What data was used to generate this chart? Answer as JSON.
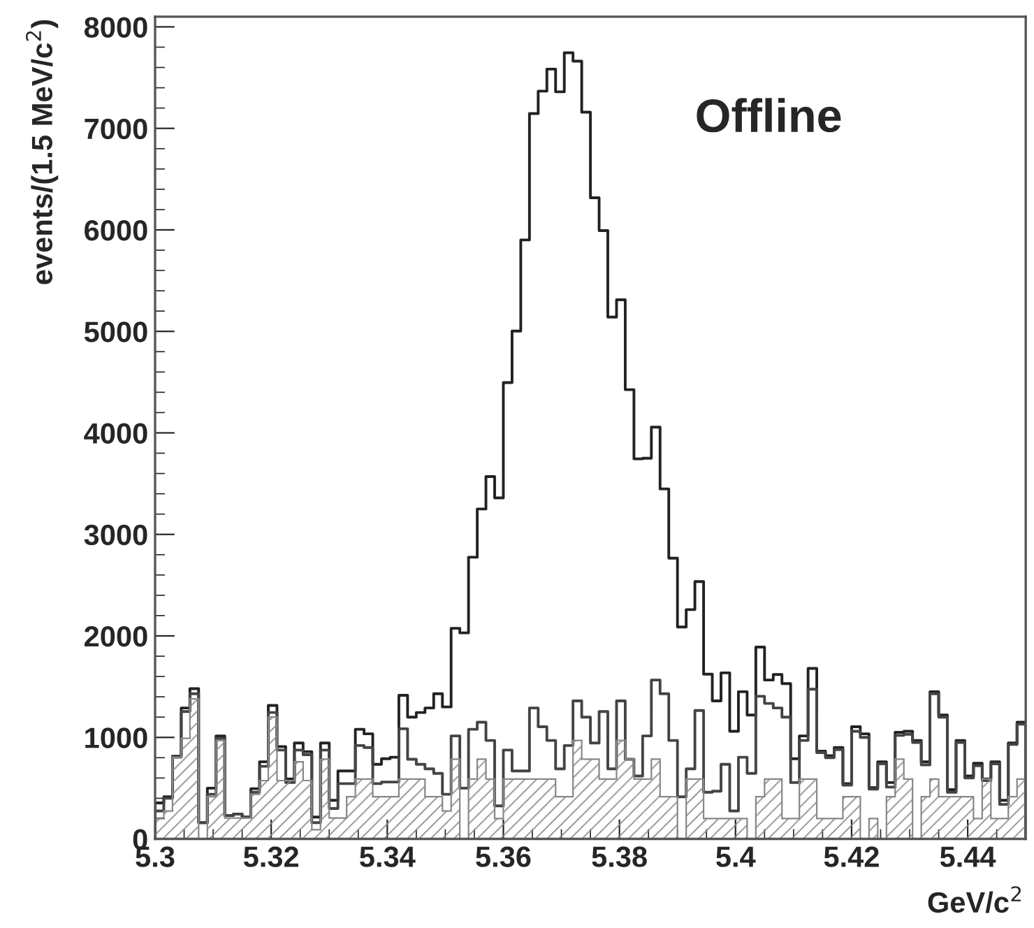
{
  "chart_data": {
    "type": "histogram",
    "ylabel": "events/(1.5 MeV/c$^{2}$)",
    "xlabel": "GeV/c$^{2}$",
    "annotations": [
      "Offline"
    ],
    "bins": [
      5.3,
      5.3015,
      5.303,
      5.3045,
      5.306,
      5.3075,
      5.309,
      5.3105,
      5.312,
      5.3135,
      5.315,
      5.3165,
      5.318,
      5.3195,
      5.321,
      5.3225,
      5.324,
      5.3255,
      5.327,
      5.3285,
      5.33,
      5.3315,
      5.333,
      5.3345,
      5.336,
      5.3375,
      5.339,
      5.3405,
      5.342,
      5.3435,
      5.345,
      5.3465,
      5.348,
      5.3495,
      5.351,
      5.3525,
      5.354,
      5.3555,
      5.357,
      5.3585,
      5.36,
      5.3615,
      5.363,
      5.3645,
      5.366,
      5.3675,
      5.369,
      5.3705,
      5.372,
      5.3735,
      5.375,
      5.3765,
      5.378,
      5.3795,
      5.381,
      5.3825,
      5.384,
      5.3855,
      5.387,
      5.3885,
      5.39,
      5.3915,
      5.393,
      5.3945,
      5.396,
      5.3975,
      5.399,
      5.4005,
      5.402,
      5.4035,
      5.405,
      5.4065,
      5.408,
      5.4095,
      5.411,
      5.4125,
      5.414,
      5.4155,
      5.417,
      5.4185,
      5.42,
      5.4215,
      5.423,
      5.4245,
      5.426,
      5.4275,
      5.429,
      5.4305,
      5.432,
      5.4335,
      5.435,
      5.4365,
      5.438,
      5.4395,
      5.441,
      5.4425,
      5.444,
      5.4455,
      5.447,
      5.4485,
      5.45
    ],
    "series": [
      {
        "type": "histogram",
        "color": "#222222",
        "values": [
          355,
          415,
          815,
          1290,
          1480,
          160,
          500,
          1015,
          230,
          245,
          215,
          495,
          760,
          1315,
          910,
          590,
          945,
          860,
          215,
          945,
          380,
          670,
          670,
          1080,
          1035,
          735,
          790,
          805,
          1415,
          1200,
          1245,
          1290,
          1430,
          1300,
          2075,
          2030,
          2775,
          3250,
          3570,
          3360,
          4495,
          5003,
          5901,
          7146,
          7367,
          7584,
          7360,
          7745,
          7662,
          7160,
          6316,
          5993,
          5141,
          5311,
          4426,
          3744,
          3750,
          4057,
          3448,
          2766,
          2088,
          2259,
          2535,
          1623,
          1360,
          1636,
          1060,
          1450,
          1220,
          1890,
          1565,
          1620,
          1530,
          790,
          1015,
          1680,
          865,
          820,
          900,
          545,
          1105,
          1035,
          505,
          760,
          555,
          1050,
          1060,
          970,
          760,
          1450,
          1220,
          485,
          970,
          620,
          745,
          590,
          760,
          380,
          945,
          1150
        ]
      },
      {
        "type": "histogram",
        "color": "#444444",
        "values": [
          275,
          400,
          805,
          1255,
          1430,
          160,
          440,
          990,
          230,
          245,
          215,
          460,
          715,
          1245,
          875,
          555,
          875,
          830,
          160,
          875,
          300,
          545,
          545,
          920,
          900,
          545,
          560,
          560,
          1085,
          785,
          735,
          690,
          645,
          440,
          1015,
          500,
          1080,
          1150,
          970,
          325,
          875,
          670,
          670,
          1290,
          1105,
          970,
          690,
          920,
          1360,
          1200,
          945,
          1255,
          690,
          1360,
          785,
          620,
          1015,
          1565,
          1430,
          970,
          415,
          690,
          1265,
          460,
          470,
          735,
          275,
          805,
          645,
          1405,
          1335,
          1290,
          1200,
          555,
          970,
          1475,
          850,
          800,
          880,
          530,
          1060,
          1000,
          490,
          740,
          510,
          1020,
          1030,
          950,
          730,
          1430,
          1200,
          460,
          950,
          600,
          720,
          575,
          740,
          340,
          930,
          1130
        ]
      },
      {
        "type": "histogram",
        "color": "#888888",
        "values": [
          205,
          275,
          805,
          990,
          1380,
          0,
          415,
          970,
          205,
          205,
          205,
          440,
          575,
          1200,
          575,
          575,
          760,
          575,
          90,
          785,
          205,
          205,
          415,
          590,
          590,
          415,
          415,
          415,
          590,
          590,
          590,
          415,
          415,
          275,
          785,
          0,
          590,
          785,
          590,
          200,
          590,
          590,
          590,
          590,
          590,
          590,
          415,
          415,
          970,
          785,
          785,
          590,
          590,
          970,
          785,
          590,
          590,
          785,
          415,
          415,
          0,
          590,
          590,
          200,
          200,
          200,
          200,
          200,
          0,
          415,
          590,
          590,
          200,
          200,
          590,
          590,
          200,
          200,
          200,
          415,
          415,
          0,
          200,
          0,
          415,
          785,
          590,
          0,
          415,
          590,
          415,
          415,
          415,
          415,
          200,
          590,
          200,
          200,
          415,
          590
        ]
      }
    ],
    "xlim": [
      5.3,
      5.45
    ],
    "ylim": [
      0,
      8100
    ],
    "xticks": [
      {
        "value": 5.3,
        "label": "5.3"
      },
      5.32,
      5.34,
      5.36,
      5.38,
      {
        "value": 5.4,
        "label": "5.4"
      },
      5.42,
      5.44
    ],
    "yticks": [
      0,
      1000,
      2000,
      3000,
      4000,
      5000,
      6000,
      7000,
      8000
    ],
    "grid": false
  }
}
